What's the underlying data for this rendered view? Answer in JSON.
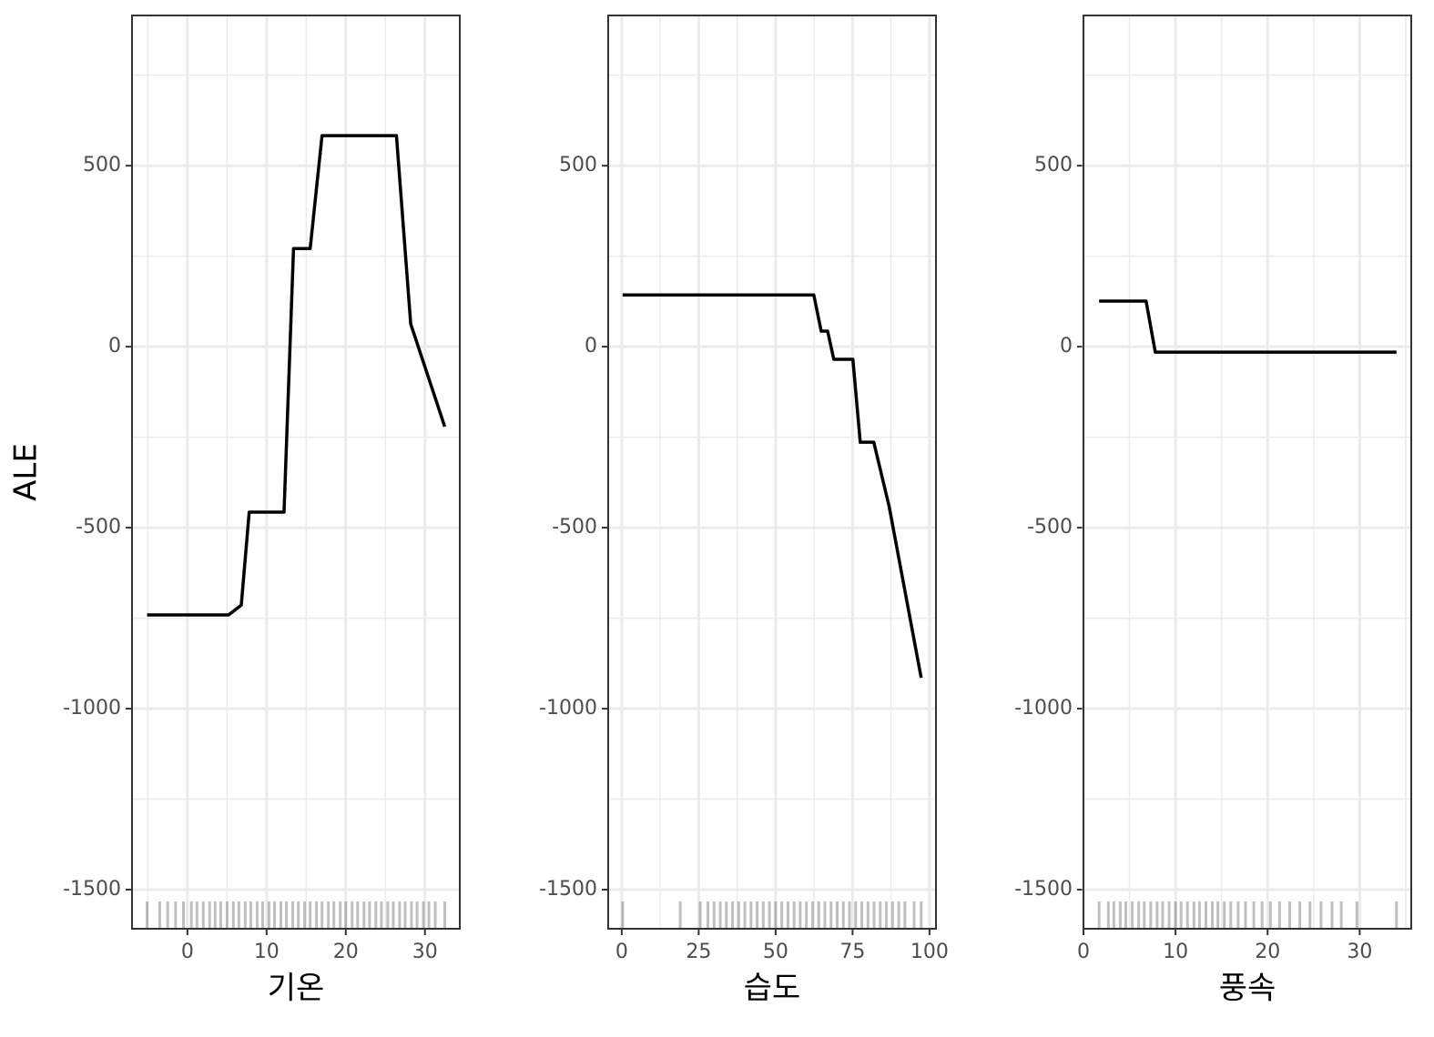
{
  "chart_data": [
    {
      "type": "line",
      "y_label": "ALE",
      "x_label": "기온",
      "color": "#000000",
      "grid": true,
      "x": [
        -5.1,
        5.2,
        6.8,
        7.8,
        12.2,
        13.4,
        15.5,
        17.0,
        26.4,
        28.2,
        32.5
      ],
      "values": [
        -741,
        -741,
        -714,
        -457,
        -457,
        271,
        271,
        583,
        583,
        63,
        -221
      ],
      "rug": [
        -5.1,
        -3.5,
        -2.5,
        -1.5,
        -0.5,
        0.5,
        1.2,
        2.0,
        2.8,
        3.5,
        4.2,
        5.0,
        5.8,
        6.5,
        7.3,
        8.0,
        8.8,
        9.5,
        10.3,
        11.0,
        11.8,
        12.5,
        13.3,
        14.0,
        14.8,
        15.5,
        16.3,
        17.0,
        17.8,
        18.5,
        19.3,
        20.0,
        20.8,
        21.5,
        22.3,
        23.0,
        23.8,
        24.5,
        25.3,
        26.0,
        26.8,
        27.5,
        28.3,
        29.0,
        29.8,
        30.5,
        31.3,
        32.5
      ],
      "xlim": [
        -7,
        34.4
      ],
      "ylim": [
        -1608,
        915
      ],
      "xticks": [
        0,
        10,
        20,
        30
      ],
      "yticks": [
        -1500,
        -1000,
        -500,
        0,
        500
      ]
    },
    {
      "type": "line",
      "x_label": "습도",
      "color": "#000000",
      "grid": true,
      "x": [
        0.3,
        62.4,
        64.8,
        66.9,
        68.9,
        75.1,
        77.5,
        81.9,
        86.9,
        97.3
      ],
      "values": [
        143,
        143,
        43,
        43,
        -35,
        -35,
        -264,
        -264,
        -442,
        -915
      ],
      "rug": [
        0.3,
        19,
        25.5,
        28,
        30,
        32,
        34,
        36,
        38,
        40,
        42,
        44,
        46,
        48,
        50,
        52,
        54,
        56,
        58,
        60,
        62,
        64,
        66,
        68,
        70,
        72,
        74,
        76,
        78,
        80,
        82,
        84,
        86,
        88,
        90,
        92,
        95,
        97.3
      ],
      "xlim": [
        -4.4,
        102.1
      ],
      "ylim": [
        -1608,
        915
      ],
      "xticks": [
        0,
        25,
        50,
        75,
        100
      ],
      "yticks": [
        -1500,
        -1000,
        -500,
        0,
        500
      ]
    },
    {
      "type": "line",
      "x_label": "풍속",
      "color": "#000000",
      "grid": true,
      "x": [
        1.7,
        6.8,
        7.8,
        34.0
      ],
      "values": [
        126,
        126,
        -15,
        -15
      ],
      "rug": [
        1.7,
        2.7,
        3.3,
        4.0,
        4.6,
        5.3,
        6.0,
        6.6,
        7.3,
        8.0,
        8.6,
        9.3,
        10.0,
        10.6,
        11.3,
        12.0,
        12.6,
        13.3,
        14.0,
        14.6,
        15.3,
        16.0,
        16.8,
        17.6,
        18.5,
        19.4,
        20.3,
        21.3,
        22.4,
        23.5,
        24.6,
        25.8,
        27.0,
        28.0,
        29.7,
        34.0
      ],
      "xlim": [
        0,
        35.6
      ],
      "ylim": [
        -1608,
        915
      ],
      "xticks": [
        0,
        10,
        20,
        30
      ],
      "yticks": [
        -1500,
        -1000,
        -500,
        0,
        500
      ]
    }
  ]
}
